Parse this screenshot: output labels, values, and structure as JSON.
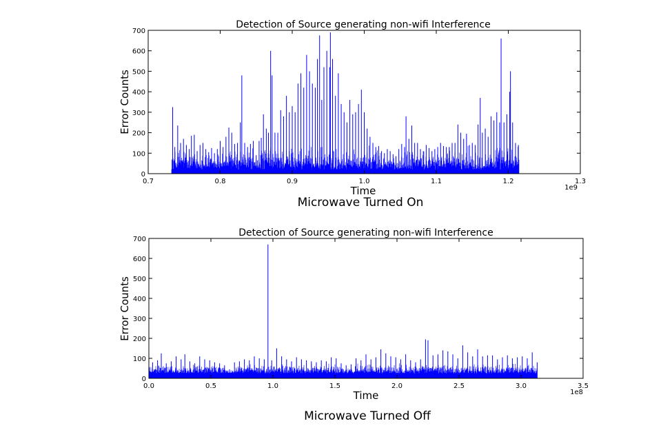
{
  "chart_data": [
    {
      "type": "bar",
      "title": "Detection of Source generating non-wifi Interference",
      "xlabel": "Time",
      "ylabel": "Error Counts",
      "x_offset_label": "1e9",
      "xlim": [
        0.7,
        1.3
      ],
      "ylim": [
        0,
        700
      ],
      "xticks": [
        "0.7",
        "0.8",
        "0.9",
        "1.0",
        "1.1",
        "1.2",
        "1.3"
      ],
      "yticks": [
        "0",
        "100",
        "200",
        "300",
        "400",
        "500",
        "600",
        "700"
      ],
      "x_units": "1e9",
      "data_range_x": [
        0.733,
        1.215
      ],
      "color": "#0000ff",
      "grid": false,
      "caption": "Microwave Turned On",
      "points": [
        [
          0.734,
          325
        ],
        [
          0.737,
          130
        ],
        [
          0.741,
          235
        ],
        [
          0.745,
          150
        ],
        [
          0.749,
          170
        ],
        [
          0.753,
          140
        ],
        [
          0.757,
          120
        ],
        [
          0.76,
          185
        ],
        [
          0.764,
          190
        ],
        [
          0.768,
          110
        ],
        [
          0.772,
          140
        ],
        [
          0.776,
          150
        ],
        [
          0.78,
          120
        ],
        [
          0.784,
          105
        ],
        [
          0.788,
          125
        ],
        [
          0.792,
          100
        ],
        [
          0.796,
          120
        ],
        [
          0.8,
          160
        ],
        [
          0.804,
          130
        ],
        [
          0.808,
          180
        ],
        [
          0.812,
          225
        ],
        [
          0.816,
          200
        ],
        [
          0.82,
          145
        ],
        [
          0.824,
          150
        ],
        [
          0.828,
          250
        ],
        [
          0.83,
          480
        ],
        [
          0.834,
          150
        ],
        [
          0.838,
          130
        ],
        [
          0.842,
          145
        ],
        [
          0.846,
          160
        ],
        [
          0.85,
          90
        ],
        [
          0.854,
          160
        ],
        [
          0.857,
          175
        ],
        [
          0.86,
          290
        ],
        [
          0.864,
          220
        ],
        [
          0.867,
          200
        ],
        [
          0.87,
          600
        ],
        [
          0.872,
          480
        ],
        [
          0.876,
          200
        ],
        [
          0.88,
          200
        ],
        [
          0.884,
          310
        ],
        [
          0.888,
          280
        ],
        [
          0.892,
          380
        ],
        [
          0.896,
          300
        ],
        [
          0.9,
          330
        ],
        [
          0.904,
          300
        ],
        [
          0.908,
          440
        ],
        [
          0.912,
          490
        ],
        [
          0.916,
          420
        ],
        [
          0.92,
          580
        ],
        [
          0.924,
          500
        ],
        [
          0.928,
          440
        ],
        [
          0.932,
          420
        ],
        [
          0.935,
          560
        ],
        [
          0.938,
          675
        ],
        [
          0.941,
          360
        ],
        [
          0.944,
          520
        ],
        [
          0.948,
          600
        ],
        [
          0.952,
          520
        ],
        [
          0.953,
          690
        ],
        [
          0.956,
          560
        ],
        [
          0.96,
          380
        ],
        [
          0.964,
          490
        ],
        [
          0.968,
          340
        ],
        [
          0.972,
          300
        ],
        [
          0.976,
          250
        ],
        [
          0.98,
          360
        ],
        [
          0.984,
          290
        ],
        [
          0.988,
          300
        ],
        [
          0.992,
          340
        ],
        [
          0.996,
          410
        ],
        [
          1.0,
          300
        ],
        [
          1.004,
          220
        ],
        [
          1.008,
          180
        ],
        [
          1.012,
          150
        ],
        [
          1.016,
          130
        ],
        [
          1.02,
          135
        ],
        [
          1.024,
          110
        ],
        [
          1.028,
          100
        ],
        [
          1.032,
          120
        ],
        [
          1.036,
          110
        ],
        [
          1.04,
          95
        ],
        [
          1.044,
          85
        ],
        [
          1.048,
          120
        ],
        [
          1.052,
          145
        ],
        [
          1.056,
          130
        ],
        [
          1.058,
          280
        ],
        [
          1.062,
          170
        ],
        [
          1.066,
          235
        ],
        [
          1.07,
          150
        ],
        [
          1.074,
          150
        ],
        [
          1.078,
          120
        ],
        [
          1.082,
          110
        ],
        [
          1.086,
          140
        ],
        [
          1.09,
          125
        ],
        [
          1.094,
          110
        ],
        [
          1.098,
          120
        ],
        [
          1.102,
          130
        ],
        [
          1.106,
          150
        ],
        [
          1.11,
          135
        ],
        [
          1.114,
          130
        ],
        [
          1.118,
          130
        ],
        [
          1.122,
          150
        ],
        [
          1.126,
          150
        ],
        [
          1.13,
          240
        ],
        [
          1.134,
          200
        ],
        [
          1.138,
          170
        ],
        [
          1.142,
          195
        ],
        [
          1.146,
          140
        ],
        [
          1.15,
          150
        ],
        [
          1.154,
          140
        ],
        [
          1.158,
          240
        ],
        [
          1.161,
          370
        ],
        [
          1.164,
          200
        ],
        [
          1.168,
          220
        ],
        [
          1.172,
          180
        ],
        [
          1.176,
          280
        ],
        [
          1.18,
          260
        ],
        [
          1.184,
          300
        ],
        [
          1.188,
          250
        ],
        [
          1.19,
          660
        ],
        [
          1.194,
          250
        ],
        [
          1.198,
          290
        ],
        [
          1.202,
          400
        ],
        [
          1.203,
          500
        ],
        [
          1.206,
          250
        ],
        [
          1.21,
          150
        ],
        [
          1.214,
          140
        ]
      ]
    },
    {
      "type": "bar",
      "title": "Detection of Source generating non-wifi Interference",
      "xlabel": "Time",
      "ylabel": "Error Counts",
      "x_offset_label": "1e8",
      "xlim": [
        0,
        3.5
      ],
      "ylim": [
        0,
        700
      ],
      "xticks": [
        "0.0",
        "0.5",
        "1.0",
        "1.5",
        "2.0",
        "2.5",
        "3.0",
        "3.5"
      ],
      "yticks": [
        "0",
        "100",
        "200",
        "300",
        "400",
        "500",
        "600",
        "700"
      ],
      "x_units": "1e8",
      "data_range_x": [
        0.0,
        3.13
      ],
      "color": "#0000ff",
      "grid": false,
      "caption": "Microwave Turned Off",
      "points": [
        [
          0.03,
          80
        ],
        [
          0.07,
          90
        ],
        [
          0.1,
          125
        ],
        [
          0.14,
          75
        ],
        [
          0.18,
          85
        ],
        [
          0.22,
          110
        ],
        [
          0.26,
          95
        ],
        [
          0.29,
          120
        ],
        [
          0.33,
          85
        ],
        [
          0.37,
          75
        ],
        [
          0.41,
          110
        ],
        [
          0.45,
          95
        ],
        [
          0.49,
          90
        ],
        [
          0.53,
          80
        ],
        [
          0.57,
          75
        ],
        [
          0.61,
          65
        ],
        [
          0.65,
          45
        ],
        [
          0.69,
          80
        ],
        [
          0.73,
          85
        ],
        [
          0.77,
          95
        ],
        [
          0.81,
          90
        ],
        [
          0.85,
          110
        ],
        [
          0.89,
          100
        ],
        [
          0.93,
          95
        ],
        [
          0.96,
          670
        ],
        [
          0.99,
          90
        ],
        [
          1.03,
          150
        ],
        [
          1.07,
          110
        ],
        [
          1.11,
          95
        ],
        [
          1.15,
          85
        ],
        [
          1.19,
          105
        ],
        [
          1.23,
          95
        ],
        [
          1.27,
          90
        ],
        [
          1.31,
          85
        ],
        [
          1.35,
          80
        ],
        [
          1.39,
          90
        ],
        [
          1.43,
          85
        ],
        [
          1.47,
          105
        ],
        [
          1.51,
          100
        ],
        [
          1.55,
          75
        ],
        [
          1.59,
          65
        ],
        [
          1.63,
          70
        ],
        [
          1.67,
          100
        ],
        [
          1.71,
          90
        ],
        [
          1.75,
          120
        ],
        [
          1.79,
          95
        ],
        [
          1.83,
          105
        ],
        [
          1.87,
          145
        ],
        [
          1.91,
          125
        ],
        [
          1.95,
          110
        ],
        [
          1.99,
          105
        ],
        [
          2.03,
          95
        ],
        [
          2.07,
          120
        ],
        [
          2.11,
          90
        ],
        [
          2.15,
          80
        ],
        [
          2.19,
          95
        ],
        [
          2.23,
          195
        ],
        [
          2.25,
          190
        ],
        [
          2.29,
          115
        ],
        [
          2.33,
          120
        ],
        [
          2.37,
          140
        ],
        [
          2.41,
          135
        ],
        [
          2.45,
          120
        ],
        [
          2.49,
          100
        ],
        [
          2.53,
          165
        ],
        [
          2.57,
          130
        ],
        [
          2.61,
          110
        ],
        [
          2.65,
          145
        ],
        [
          2.69,
          110
        ],
        [
          2.73,
          115
        ],
        [
          2.77,
          115
        ],
        [
          2.81,
          95
        ],
        [
          2.85,
          105
        ],
        [
          2.89,
          115
        ],
        [
          2.93,
          100
        ],
        [
          2.97,
          105
        ],
        [
          3.01,
          110
        ],
        [
          3.05,
          100
        ],
        [
          3.09,
          130
        ],
        [
          3.13,
          80
        ]
      ]
    }
  ]
}
